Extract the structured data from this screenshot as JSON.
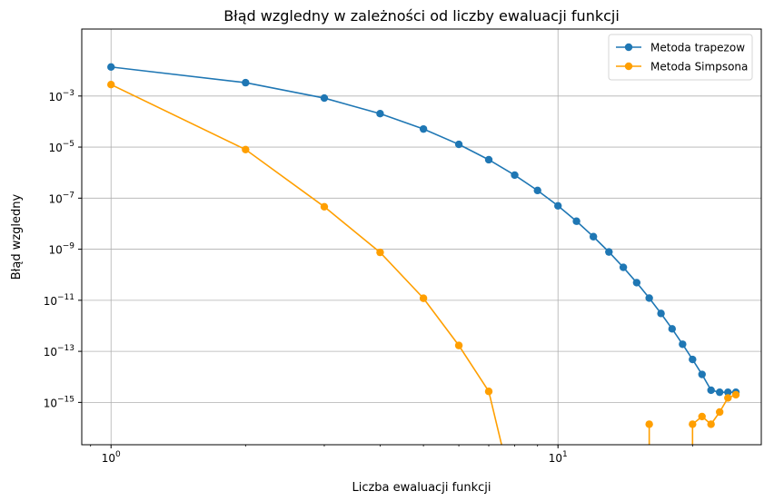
{
  "chart_data": {
    "type": "line",
    "title": "Błąd wzgledny w zależności od liczby ewaluacji funkcji",
    "xlabel": "Liczba ewaluacji funkcji",
    "ylabel": "Błąd wzgledny",
    "xscale": "log",
    "yscale": "log",
    "xlim": [
      0.86,
      28.5
    ],
    "ylim": [
      2.2e-17,
      0.42
    ],
    "grid": true,
    "legend_position": "top-right",
    "x_ticks": [
      {
        "value": 1,
        "base": "10",
        "exp": "0"
      },
      {
        "value": 10,
        "base": "10",
        "exp": "1"
      }
    ],
    "y_ticks": [
      {
        "value": 0.001,
        "base": "10",
        "exp": "−3"
      },
      {
        "value": 1e-05,
        "base": "10",
        "exp": "−5"
      },
      {
        "value": 1e-07,
        "base": "10",
        "exp": "−7"
      },
      {
        "value": 1e-09,
        "base": "10",
        "exp": "−9"
      },
      {
        "value": 1e-11,
        "base": "10",
        "exp": "−11"
      },
      {
        "value": 1e-13,
        "base": "10",
        "exp": "−13"
      },
      {
        "value": 1e-15,
        "base": "10",
        "exp": "−15"
      }
    ],
    "series": [
      {
        "name": "Metoda trapezow",
        "color": "#1f77b4",
        "points": [
          [
            1,
            0.0137
          ],
          [
            2,
            0.00333
          ],
          [
            3,
            0.00083
          ],
          [
            4,
            0.000204
          ],
          [
            5,
            5.1e-05
          ],
          [
            6,
            1.28e-05
          ],
          [
            7,
            3.2e-06
          ],
          [
            8,
            8e-07
          ],
          [
            9,
            2e-07
          ],
          [
            10,
            5e-08
          ],
          [
            11,
            1.25e-08
          ],
          [
            12,
            3.1e-09
          ],
          [
            13,
            7.8e-10
          ],
          [
            14,
            1.95e-10
          ],
          [
            15,
            4.9e-11
          ],
          [
            16,
            1.22e-11
          ],
          [
            17,
            3.05e-12
          ],
          [
            18,
            7.6e-13
          ],
          [
            19,
            1.9e-13
          ],
          [
            20,
            4.8e-14
          ],
          [
            21,
            1.25e-14
          ],
          [
            22,
            3e-15
          ],
          [
            23,
            2.5e-15
          ],
          [
            24,
            2.5e-15
          ],
          [
            25,
            2.5e-15
          ]
        ]
      },
      {
        "name": "Metoda Simpsona",
        "color": "#ff9f00",
        "points": [
          [
            1,
            0.0028
          ],
          [
            2,
            8e-06
          ],
          [
            3,
            4.6e-08
          ],
          [
            4,
            7.5e-10
          ],
          [
            5,
            1.2e-11
          ],
          [
            6,
            1.7e-13
          ],
          [
            7,
            2.7e-15
          ],
          [
            8,
            0
          ],
          [
            16,
            0
          ],
          [
            16,
            1.4e-16
          ],
          [
            16,
            0
          ],
          [
            20,
            0
          ],
          [
            20,
            1.4e-16
          ],
          [
            21,
            2.8e-16
          ],
          [
            22,
            1.4e-16
          ],
          [
            23,
            4.2e-16
          ],
          [
            24,
            1.5e-15
          ],
          [
            25,
            2e-15
          ]
        ]
      }
    ]
  }
}
